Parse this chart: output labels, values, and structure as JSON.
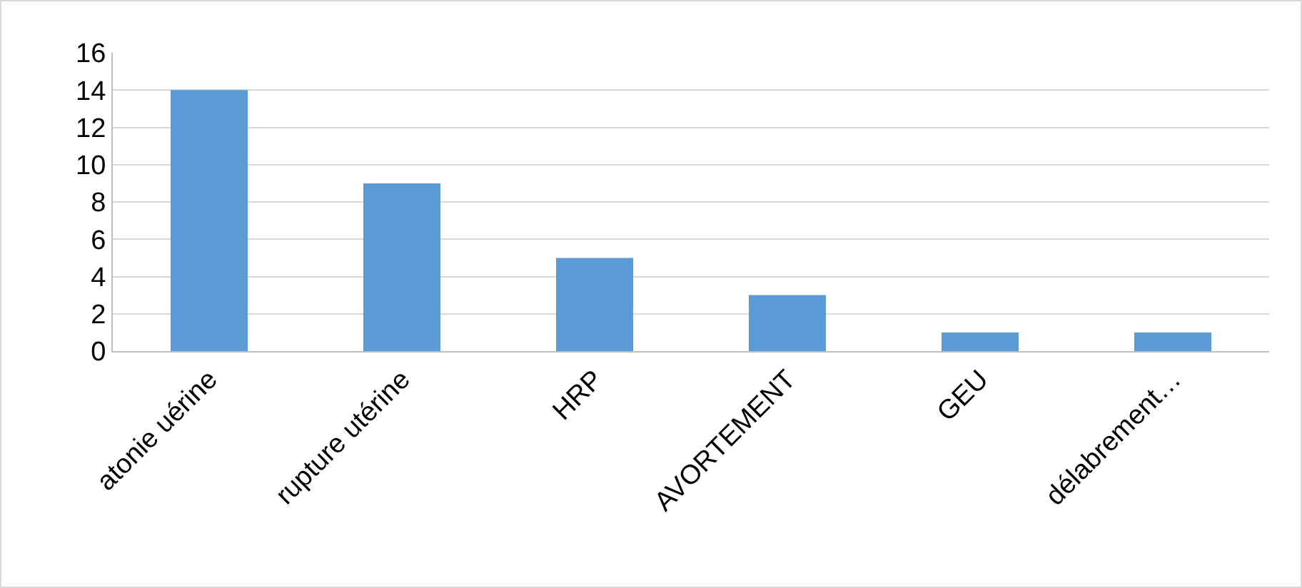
{
  "chart_data": {
    "type": "bar",
    "categories": [
      "atonie uérine",
      "rupture utérine",
      "HRP",
      "AVORTEMENT",
      "GEU",
      "délabrement…"
    ],
    "values": [
      14,
      9,
      5,
      3,
      1,
      1
    ],
    "color": "#5b9bd5",
    "ylim": [
      0,
      16
    ],
    "yticks": [
      0,
      2,
      4,
      6,
      8,
      10,
      12,
      14,
      16
    ],
    "grid": "y"
  }
}
